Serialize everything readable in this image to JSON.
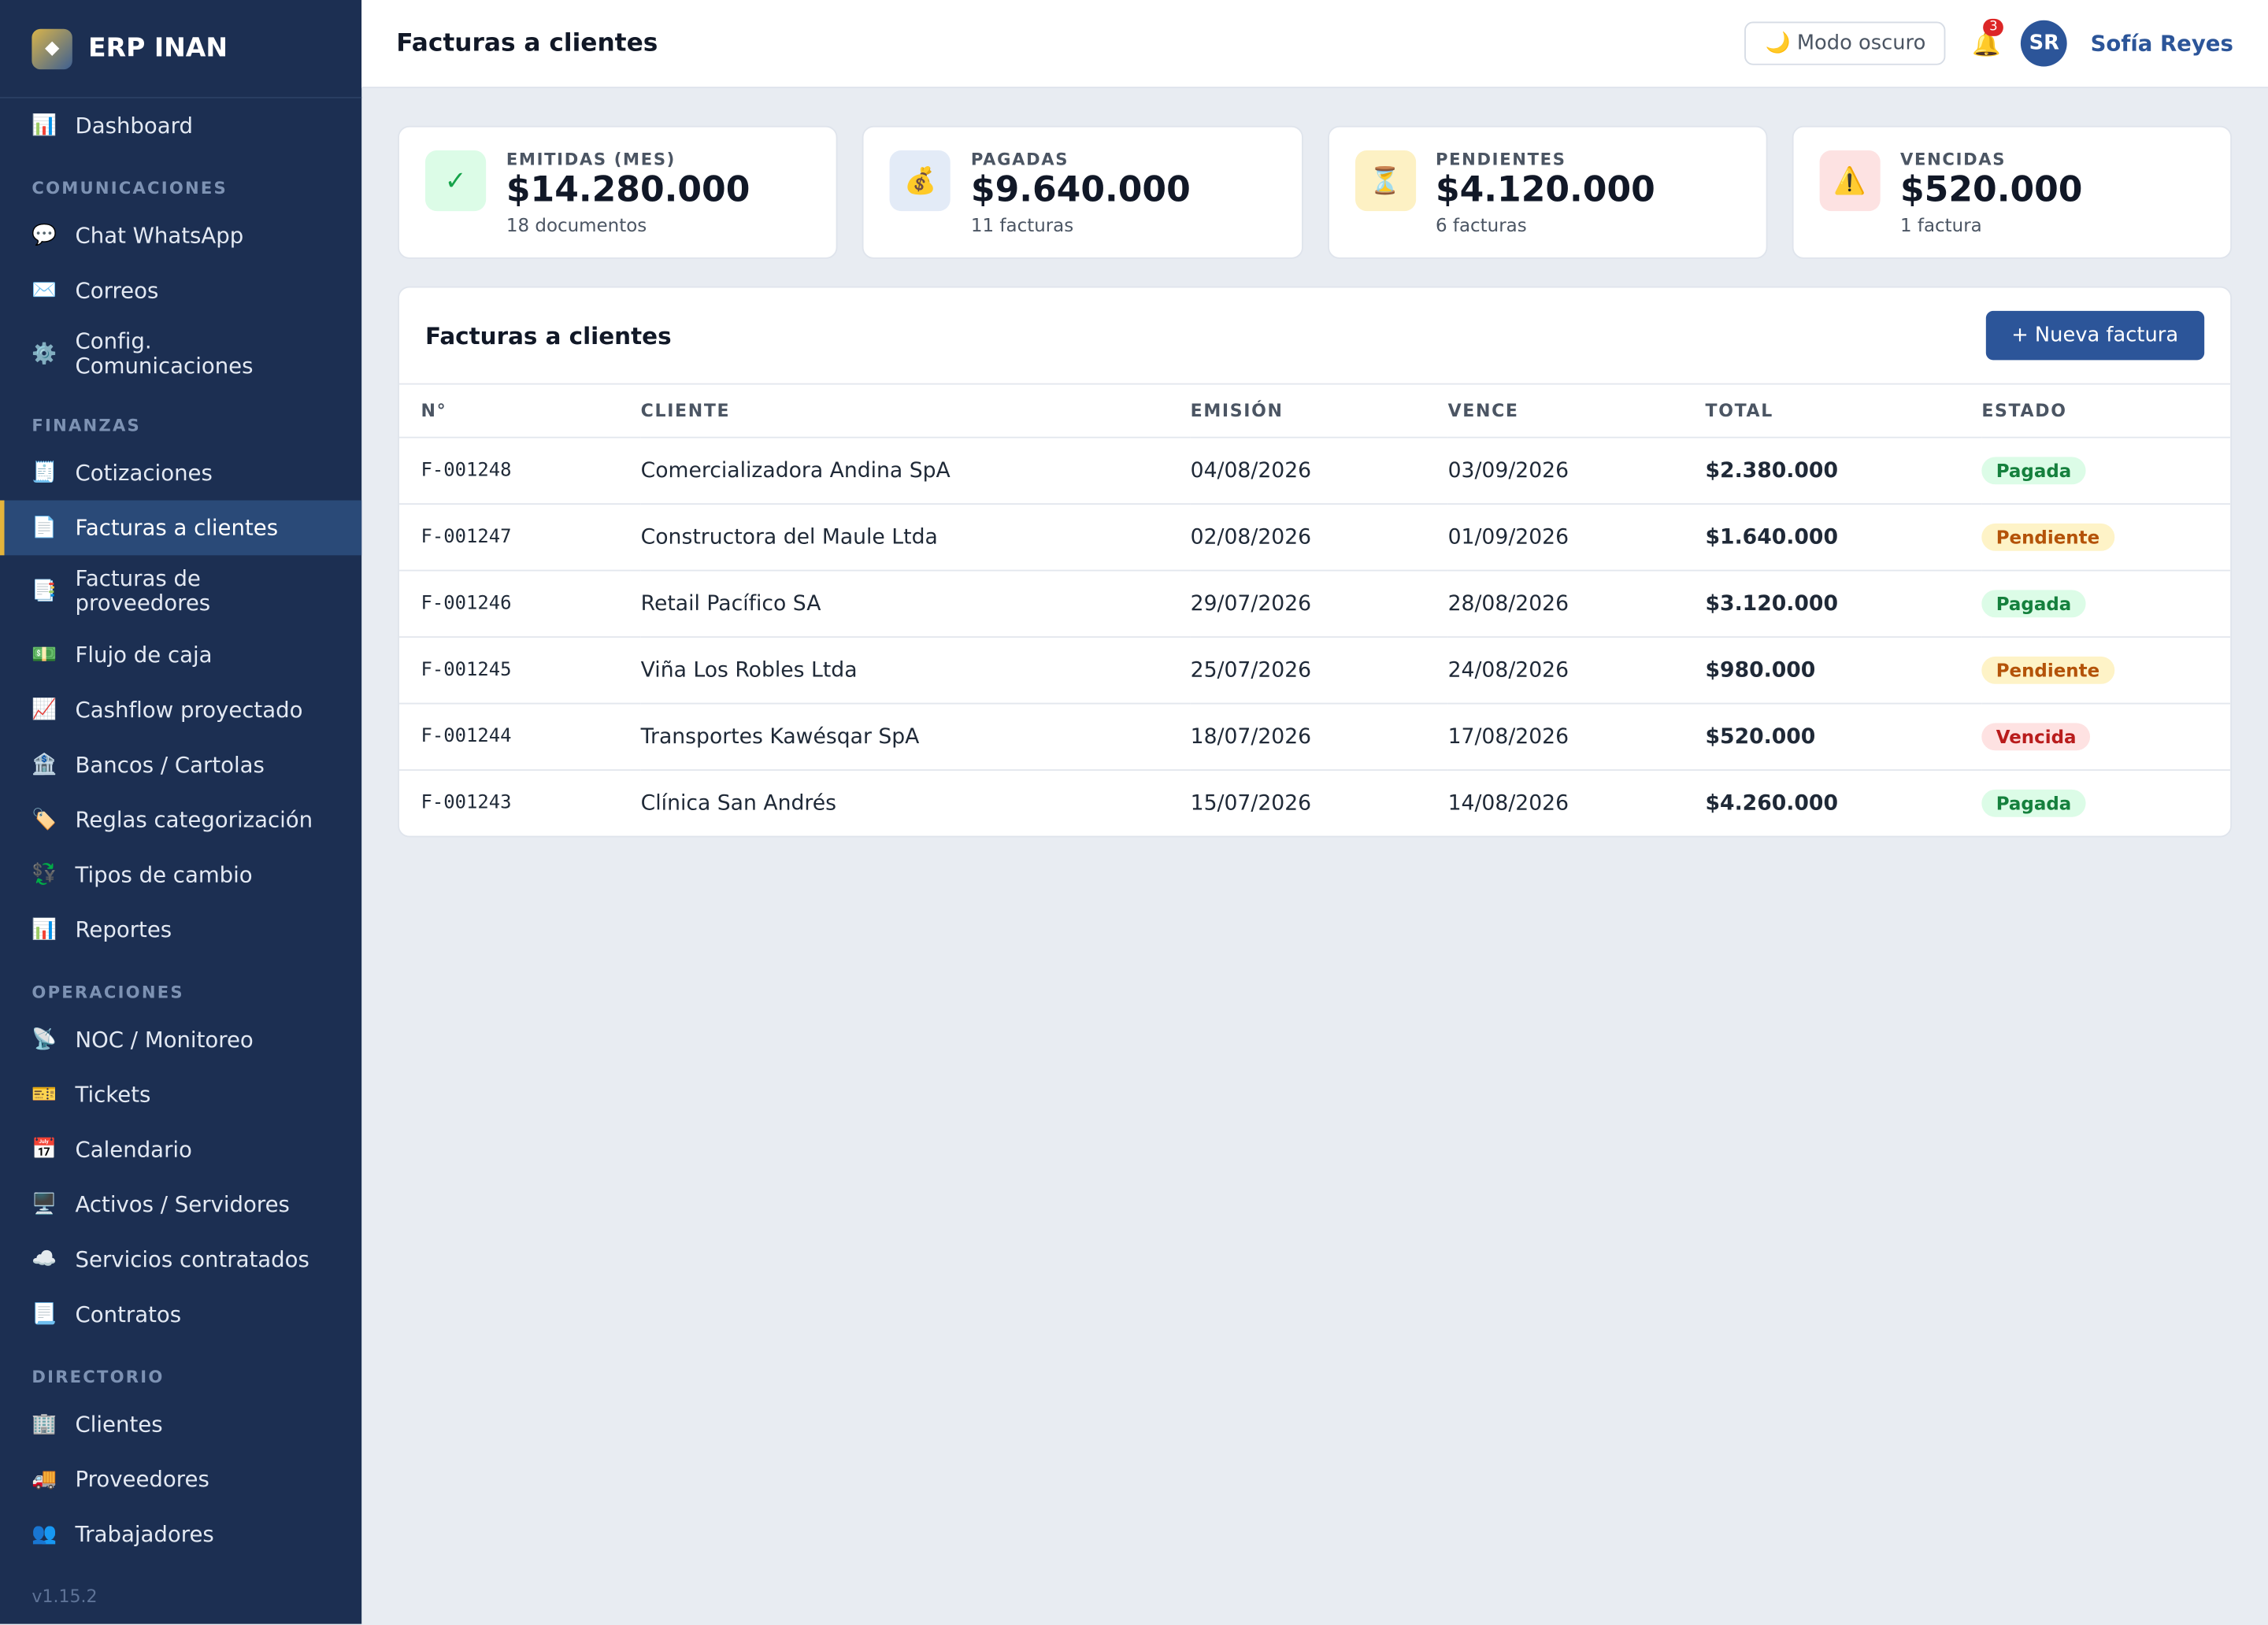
{
  "sidebar": {
    "logo": "◆",
    "brand": "ERP INAN",
    "top": [
      {
        "icon": "📊",
        "label": "Dashboard"
      }
    ],
    "sections": [
      {
        "title": "COMUNICACIONES",
        "items": [
          {
            "icon": "💬",
            "label": "Chat WhatsApp"
          },
          {
            "icon": "✉️",
            "label": "Correos"
          },
          {
            "icon": "⚙️",
            "label": "Config. Comunicaciones"
          }
        ]
      },
      {
        "title": "FINANZAS",
        "items": [
          {
            "icon": "🧾",
            "label": "Cotizaciones"
          },
          {
            "icon": "📄",
            "label": "Facturas a clientes",
            "active": true
          },
          {
            "icon": "📑",
            "label": "Facturas de proveedores"
          },
          {
            "icon": "💵",
            "label": "Flujo de caja"
          },
          {
            "icon": "📈",
            "label": "Cashflow proyectado"
          },
          {
            "icon": "🏦",
            "label": "Bancos / Cartolas"
          },
          {
            "icon": "🏷️",
            "label": "Reglas categorización"
          },
          {
            "icon": "💱",
            "label": "Tipos de cambio"
          },
          {
            "icon": "📊",
            "label": "Reportes"
          }
        ]
      },
      {
        "title": "OPERACIONES",
        "items": [
          {
            "icon": "📡",
            "label": "NOC / Monitoreo"
          },
          {
            "icon": "🎫",
            "label": "Tickets"
          },
          {
            "icon": "📅",
            "label": "Calendario"
          },
          {
            "icon": "🖥️",
            "label": "Activos / Servidores"
          },
          {
            "icon": "☁️",
            "label": "Servicios contratados"
          },
          {
            "icon": "📃",
            "label": "Contratos"
          }
        ]
      },
      {
        "title": "DIRECTORIO",
        "items": [
          {
            "icon": "🏢",
            "label": "Clientes"
          },
          {
            "icon": "🚚",
            "label": "Proveedores"
          },
          {
            "icon": "👥",
            "label": "Trabajadores"
          }
        ]
      }
    ],
    "version": "v1.15.2"
  },
  "header": {
    "title": "Facturas a clientes",
    "dark_mode": {
      "icon": "🌙",
      "label": "Modo oscuro"
    },
    "bell": "🔔",
    "notifications": 3,
    "avatar": "SR",
    "user": "Sofía Reyes"
  },
  "stats": [
    {
      "icon": "✓",
      "label": "EMITIDAS (MES)",
      "value": "$14.280.000",
      "sub": "18 documentos",
      "color": "#dcfce7"
    },
    {
      "icon": "💰",
      "label": "PAGADAS",
      "value": "$9.640.000",
      "sub": "11 facturas",
      "color": "#e3ebf7"
    },
    {
      "icon": "⏳",
      "label": "PENDIENTES",
      "value": "$4.120.000",
      "sub": "6 facturas",
      "color": "#fdf1c4"
    },
    {
      "icon": "⚠️",
      "label": "VENCIDAS",
      "value": "$520.000",
      "sub": "1 factura",
      "color": "#fde2e2"
    }
  ],
  "table": {
    "title": "Facturas a clientes",
    "button": {
      "icon": "+",
      "label": "Nueva factura"
    },
    "columns": [
      "N°",
      "CLIENTE",
      "EMISIÓN",
      "VENCE",
      "TOTAL",
      "ESTADO"
    ],
    "rows": [
      [
        "F-001248",
        "Comercializadora Andina SpA",
        "04/08/2026",
        "03/09/2026",
        "$2.380.000",
        "Pagada"
      ],
      [
        "F-001247",
        "Constructora del Maule Ltda",
        "02/08/2026",
        "01/09/2026",
        "$1.640.000",
        "Pendiente"
      ],
      [
        "F-001246",
        "Retail Pacífico SA",
        "29/07/2026",
        "28/08/2026",
        "$3.120.000",
        "Pagada"
      ],
      [
        "F-001245",
        "Viña Los Robles Ltda",
        "25/07/2026",
        "24/08/2026",
        "$980.000",
        "Pendiente"
      ],
      [
        "F-001244",
        "Transportes Kawésqar SpA",
        "18/07/2026",
        "17/08/2026",
        "$520.000",
        "Vencida"
      ],
      [
        "F-001243",
        "Clínica San Andrés",
        "15/07/2026",
        "14/08/2026",
        "$4.260.000",
        "Pagada"
      ]
    ]
  }
}
